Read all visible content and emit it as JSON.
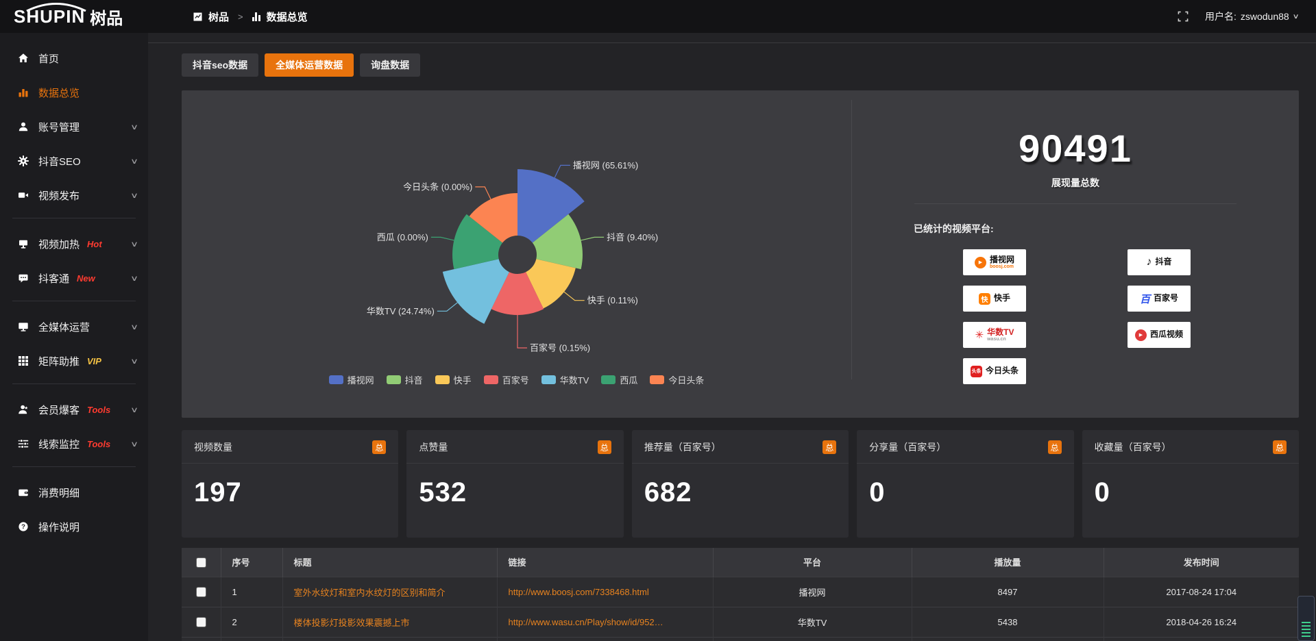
{
  "colors": {
    "accent": "#e8730d",
    "link": "#e8831f",
    "badge_hot": "#ff3b30",
    "badge_vip": "#f6c344",
    "panel_bg": "#3c3c40",
    "sidebar_bg": "#1c1c1f"
  },
  "topbar": {
    "logo_en": "SHUPIN",
    "logo_cn": "树品",
    "breadcrumb": [
      {
        "label": "树品"
      },
      {
        "label": "数据总览"
      }
    ],
    "breadcrumb_sep": ">",
    "username_label": "用户名:",
    "username": "zswodun88"
  },
  "sidebar": {
    "items": [
      {
        "label": "首页",
        "icon": "home-icon"
      },
      {
        "label": "数据总览",
        "icon": "chart-icon",
        "active": true
      },
      {
        "label": "账号管理",
        "icon": "user-icon",
        "chevron": true
      },
      {
        "label": "抖音SEO",
        "icon": "gear-icon",
        "chevron": true
      },
      {
        "label": "视频发布",
        "icon": "video-icon",
        "chevron": true
      },
      {
        "divider": true
      },
      {
        "label": "视频加热",
        "icon": "heat-icon",
        "badge": "Hot",
        "badge_color": "#ff3b30",
        "chevron": true
      },
      {
        "label": "抖客通",
        "icon": "message-icon",
        "badge": "New",
        "badge_color": "#ff3b30",
        "chevron": true
      },
      {
        "divider": true
      },
      {
        "label": "全媒体运营",
        "icon": "monitor-icon",
        "chevron": true
      },
      {
        "label": "矩阵助推",
        "icon": "grid-icon",
        "badge": "VIP",
        "badge_color": "#f6c344",
        "chevron": true
      },
      {
        "divider": true
      },
      {
        "label": "会员爆客",
        "icon": "member-icon",
        "badge": "Tools",
        "badge_color": "#ff3b30",
        "chevron": true
      },
      {
        "label": "线索监控",
        "icon": "sliders-icon",
        "badge": "Tools",
        "badge_color": "#ff3b30",
        "chevron": true
      },
      {
        "divider": true
      },
      {
        "label": "消费明细",
        "icon": "wallet-icon"
      },
      {
        "label": "操作说明",
        "icon": "help-icon"
      }
    ]
  },
  "tabs": [
    {
      "label": "抖音seo数据",
      "active": false
    },
    {
      "label": "全媒体运营数据",
      "active": true
    },
    {
      "label": "询盘数据",
      "active": false
    }
  ],
  "chart_data": {
    "type": "pie",
    "style": "nightingale-rose",
    "legend_position": "bottom",
    "label_format": "{name} ({percent}%)",
    "series": [
      {
        "name": "播视网",
        "percent": "65.61",
        "color": "#5470c6",
        "radius": 125
      },
      {
        "name": "抖音",
        "percent": "9.40",
        "color": "#91cc75",
        "radius": 95
      },
      {
        "name": "快手",
        "percent": "0.11",
        "color": "#fac858",
        "radius": 87
      },
      {
        "name": "百家号",
        "percent": "0.15",
        "color": "#ee6666",
        "radius": 88
      },
      {
        "name": "华数TV",
        "percent": "24.74",
        "color": "#73c0de",
        "radius": 112
      },
      {
        "name": "西瓜",
        "percent": "0.00",
        "color": "#3ba272",
        "radius": 95
      },
      {
        "name": "今日头条",
        "percent": "0.00",
        "color": "#fc8452",
        "radius": 90
      }
    ]
  },
  "summary": {
    "value": "90491",
    "label": "展现量总数",
    "platforms_title": "已统计的视频平台:",
    "platforms": [
      {
        "name": "播视网",
        "sub": "boosj.com"
      },
      {
        "name": "快手"
      },
      {
        "name": "华数TV",
        "sub": "wasu.cn"
      },
      {
        "name": "今日头条"
      },
      {
        "name": "抖音"
      },
      {
        "name": "百家号"
      },
      {
        "name": "西瓜视频"
      }
    ]
  },
  "stat_cards": [
    {
      "label": "视频数量",
      "badge": "总",
      "value": "197"
    },
    {
      "label": "点赞量",
      "badge": "总",
      "value": "532"
    },
    {
      "label": "推荐量（百家号）",
      "badge": "总",
      "value": "682"
    },
    {
      "label": "分享量（百家号）",
      "badge": "总",
      "value": "0"
    },
    {
      "label": "收藏量（百家号）",
      "badge": "总",
      "value": "0"
    }
  ],
  "table": {
    "headers": [
      "序号",
      "标题",
      "链接",
      "平台",
      "播放量",
      "发布时间"
    ],
    "rows": [
      {
        "num": "1",
        "title": "室外水纹灯和室内水纹灯的区别和简介",
        "link": "http://www.boosj.com/7338468.html",
        "platform": "播视网",
        "views": "8497",
        "time": "2017-08-24 17:04"
      },
      {
        "num": "2",
        "title": "楼体投影灯投影效果震撼上市",
        "link": "http://www.wasu.cn/Play/show/id/952…",
        "platform": "华数TV",
        "views": "5438",
        "time": "2018-04-26 16:24"
      }
    ]
  }
}
